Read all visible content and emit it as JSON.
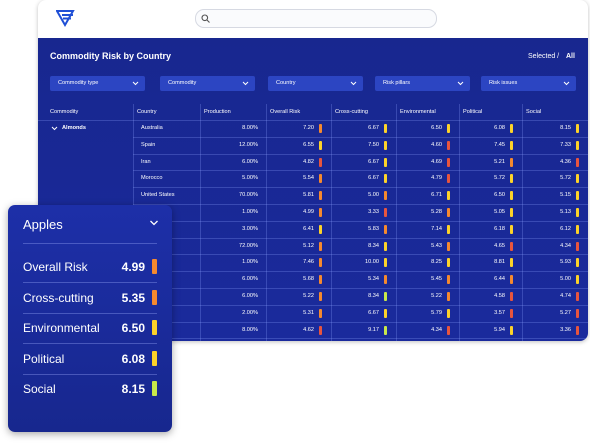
{
  "header": {
    "title": "Commodity Risk by Country",
    "selected": "Selected /",
    "all": "All"
  },
  "filters": [
    "Commodity type",
    "Commodity",
    "Country",
    "Risk pillars",
    "Risk issues"
  ],
  "table": {
    "columns": [
      "Commodity",
      "Country",
      "Production",
      "Overall Risk",
      "Cross-cutting",
      "Environmental",
      "Political",
      "Social"
    ],
    "rows": [
      {
        "commodity": "Almonds",
        "country": "Australia",
        "production": "8.00%",
        "scores": [
          {
            "value": "7.20",
            "color": "#f5892f"
          },
          {
            "value": "6.67",
            "color": "#fcd22a"
          },
          {
            "value": "6.50",
            "color": "#fcd22a"
          },
          {
            "value": "6.08",
            "color": "#fcd22a"
          },
          {
            "value": "8.15",
            "color": "#fcd22a"
          }
        ]
      },
      {
        "country": "Spain",
        "production": "12.00%",
        "scores": [
          {
            "value": "6.55",
            "color": "#fcd22a"
          },
          {
            "value": "7.50",
            "color": "#fcd22a"
          },
          {
            "value": "4.60",
            "color": "#e8553e"
          },
          {
            "value": "7.45",
            "color": "#fcd22a"
          },
          {
            "value": "7.33",
            "color": "#fcd22a"
          }
        ]
      },
      {
        "country": "Iran",
        "production": "6.00%",
        "scores": [
          {
            "value": "4.82",
            "color": "#e8553e"
          },
          {
            "value": "6.67",
            "color": "#fcd22a"
          },
          {
            "value": "4.69",
            "color": "#e8553e"
          },
          {
            "value": "5.21",
            "color": "#f5892f"
          },
          {
            "value": "4.36",
            "color": "#e8553e"
          }
        ]
      },
      {
        "country": "Morocco",
        "production": "5.00%",
        "scores": [
          {
            "value": "5.54",
            "color": "#f5892f"
          },
          {
            "value": "6.67",
            "color": "#fcd22a"
          },
          {
            "value": "4.79",
            "color": "#e8553e"
          },
          {
            "value": "5.72",
            "color": "#fcd22a"
          },
          {
            "value": "5.72",
            "color": "#fcd22a"
          }
        ]
      },
      {
        "country": "United States",
        "production": "70.00%",
        "scores": [
          {
            "value": "5.81",
            "color": "#f5892f"
          },
          {
            "value": "5.00",
            "color": "#f5892f"
          },
          {
            "value": "6.71",
            "color": "#fcd22a"
          },
          {
            "value": "6.50",
            "color": "#fcd22a"
          },
          {
            "value": "5.15",
            "color": "#fcd22a"
          }
        ]
      },
      {
        "country": null,
        "production": "1.00%",
        "scores": [
          {
            "value": "4.99",
            "color": "#f5892f"
          },
          {
            "value": "3.33",
            "color": "#e8553e"
          },
          {
            "value": "5.28",
            "color": "#f5892f"
          },
          {
            "value": "5.05",
            "color": "#fcd22a"
          },
          {
            "value": "5.13",
            "color": "#fcd22a"
          }
        ]
      },
      {
        "country": null,
        "production": "3.00%",
        "scores": [
          {
            "value": "6.41",
            "color": "#fcd22a"
          },
          {
            "value": "5.83",
            "color": "#f5892f"
          },
          {
            "value": "7.14",
            "color": "#fcd22a"
          },
          {
            "value": "6.18",
            "color": "#fcd22a"
          },
          {
            "value": "6.12",
            "color": "#fcd22a"
          }
        ]
      },
      {
        "country": null,
        "production": "72.00%",
        "scores": [
          {
            "value": "5.12",
            "color": "#f5892f"
          },
          {
            "value": "8.34",
            "color": "#fcd22a"
          },
          {
            "value": "5.43",
            "color": "#f5892f"
          },
          {
            "value": "4.65",
            "color": "#e8553e"
          },
          {
            "value": "4.34",
            "color": "#e8553e"
          }
        ]
      },
      {
        "country": null,
        "production": "1.00%",
        "scores": [
          {
            "value": "7.46",
            "color": "#f5892f"
          },
          {
            "value": "10.00",
            "color": "#fcd22a"
          },
          {
            "value": "8.25",
            "color": "#fcd22a"
          },
          {
            "value": "8.81",
            "color": "#fcd22a"
          },
          {
            "value": "5.93",
            "color": "#fcd22a"
          }
        ]
      },
      {
        "country": null,
        "production": "6.00%",
        "scores": [
          {
            "value": "5.68",
            "color": "#f5892f"
          },
          {
            "value": "5.34",
            "color": "#f5892f"
          },
          {
            "value": "5.45",
            "color": "#f5892f"
          },
          {
            "value": "6.44",
            "color": "#f5892f"
          },
          {
            "value": "5.00",
            "color": "#fcd22a"
          }
        ]
      },
      {
        "country": null,
        "production": "6.00%",
        "scores": [
          {
            "value": "5.22",
            "color": "#f5892f"
          },
          {
            "value": "8.34",
            "color": "#c8e84a"
          },
          {
            "value": "5.22",
            "color": "#f5892f"
          },
          {
            "value": "4.58",
            "color": "#e8553e"
          },
          {
            "value": "4.74",
            "color": "#e8553e"
          }
        ]
      },
      {
        "country": null,
        "production": "2.00%",
        "scores": [
          {
            "value": "5.31",
            "color": "#f5892f"
          },
          {
            "value": "6.67",
            "color": "#fcd22a"
          },
          {
            "value": "5.79",
            "color": "#fcd22a"
          },
          {
            "value": "3.57",
            "color": "#e8553e"
          },
          {
            "value": "5.27",
            "color": "#e8553e"
          }
        ]
      },
      {
        "country": null,
        "production": "8.00%",
        "scores": [
          {
            "value": "4.62",
            "color": "#e8553e"
          },
          {
            "value": "9.17",
            "color": "#c8e84a"
          },
          {
            "value": "4.34",
            "color": "#e8553e"
          },
          {
            "value": "5.94",
            "color": "#fcd22a"
          },
          {
            "value": "3.36",
            "color": "#e8553e"
          }
        ]
      }
    ]
  },
  "card": {
    "title": "Apples",
    "items": [
      {
        "label": "Overall Risk",
        "value": "4.99",
        "color": "#f5892f"
      },
      {
        "label": "Cross-cutting",
        "value": "5.35",
        "color": "#f5892f"
      },
      {
        "label": "Environmental",
        "value": "6.50",
        "color": "#fcd22a"
      },
      {
        "label": "Political",
        "value": "6.08",
        "color": "#fcd22a"
      },
      {
        "label": "Social",
        "value": "8.15",
        "color": "#c8e84a"
      }
    ]
  }
}
